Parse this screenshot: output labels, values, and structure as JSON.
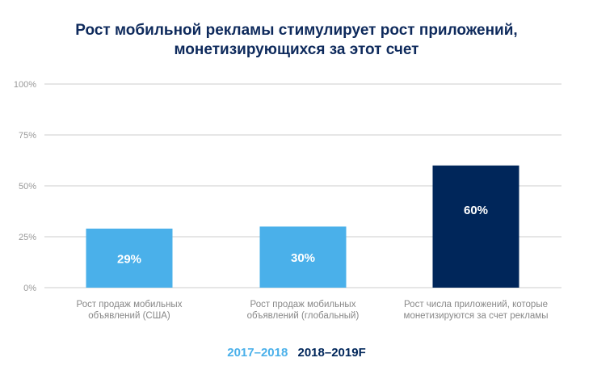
{
  "chart_data": {
    "type": "bar",
    "title": "Рост мобильной рекламы стимулирует рост приложений, монетизирующихся за счет",
    "title_lines": [
      "Рост мобильной рекламы стимулирует рост приложений,",
      "монетизирующихся за этот счет"
    ],
    "categories": [
      [
        "Рост продаж мобильных",
        "объявлений (США)"
      ],
      [
        "Рост продаж мобильных",
        "объявлений (глобальный)"
      ],
      [
        "Рост числа приложений, которые",
        "монетизируются за счет рекламы"
      ]
    ],
    "values": [
      29,
      30,
      60
    ],
    "data_labels": [
      "29%",
      "30%",
      "60%"
    ],
    "bar_series": [
      "2017–2018",
      "2017–2018",
      "2018–2019F"
    ],
    "ylim": [
      0,
      100
    ],
    "yticks": [
      0,
      25,
      50,
      75,
      100
    ],
    "ytick_labels": [
      "0%",
      "25%",
      "50%",
      "75%",
      "100%"
    ],
    "grid": true,
    "legend_position": "bottom",
    "legend": [
      {
        "name": "2017–2018",
        "color": "#4ab0ea"
      },
      {
        "name": "2018–2019F",
        "color": "#00265a"
      }
    ],
    "colors": {
      "title": "#0e2a5c",
      "grid": "#e6e6e6",
      "tick": "#999999"
    }
  }
}
